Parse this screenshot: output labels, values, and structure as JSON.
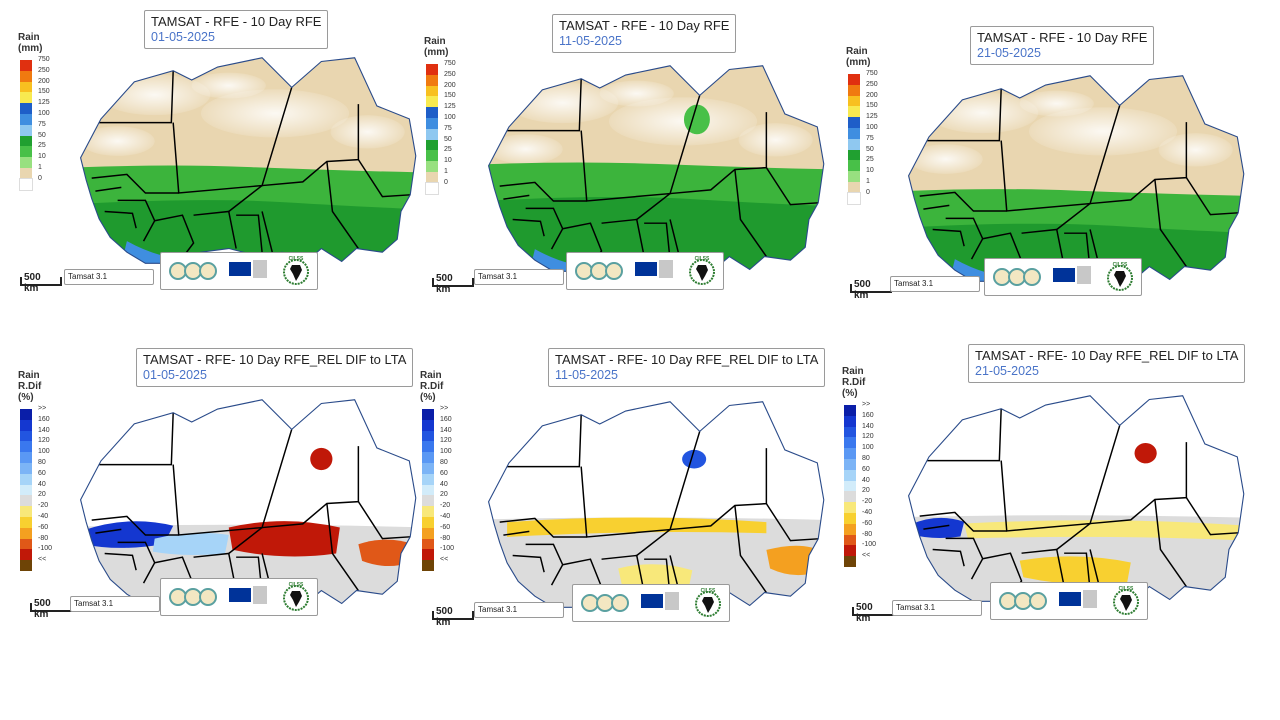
{
  "panels": [
    {
      "title": "TAMSAT - RFE - 10 Day RFE",
      "date": "01-05-2025"
    },
    {
      "title": "TAMSAT - RFE - 10 Day RFE",
      "date": "11-05-2025"
    },
    {
      "title": "TAMSAT - RFE - 10 Day RFE",
      "date": "21-05-2025"
    },
    {
      "title": "TAMSAT - RFE- 10 Day RFE_REL DIF to LTA",
      "date": "01-05-2025"
    },
    {
      "title": "TAMSAT - RFE- 10 Day RFE_REL DIF to LTA",
      "date": "11-05-2025"
    },
    {
      "title": "TAMSAT - RFE- 10 Day RFE_REL DIF to LTA",
      "date": "21-05-2025"
    }
  ],
  "rain_legend": {
    "line1": "Rain",
    "line2": "(mm)",
    "labels": [
      "750",
      "250",
      "200",
      "150",
      "125",
      "100",
      "75",
      "50",
      "25",
      "10",
      "1",
      "0"
    ],
    "colors": [
      "#e03010",
      "#f07a10",
      "#f8c020",
      "#f8ea50",
      "#1e5ec8",
      "#3f8ee0",
      "#8fc8f0",
      "#20a030",
      "#48c048",
      "#98e080",
      "#e9d6b0",
      "#ffffff"
    ]
  },
  "reldif_legend": {
    "line1": "Rain",
    "line2": "R.Dif",
    "line3": "(%)",
    "labels": [
      ">>",
      "160",
      "140",
      "120",
      "100",
      "80",
      "60",
      "40",
      "20",
      "-20",
      "-40",
      "-60",
      "-80",
      "-100",
      "<<"
    ],
    "colors": [
      "#0a1ea8",
      "#1437d0",
      "#2255e0",
      "#3a78ee",
      "#5a98f4",
      "#7cb4f6",
      "#a6d4f8",
      "#d2ecfa",
      "#dcdcdc",
      "#f8e87a",
      "#f8d030",
      "#f4a020",
      "#e05818",
      "#c01808",
      "#6e4406"
    ]
  },
  "scale_label": "500 km",
  "source_label": "Tamsat 3.1",
  "logos": {
    "cilss_text": "CILSS"
  },
  "colors": {
    "sahara": "#e9d6b0",
    "green": "#3cb43c",
    "dark_green": "#1f9a2e",
    "coast_blue": "#3f8ee0",
    "neutral": "#dcdcdc",
    "border": "#000000",
    "coast": "#2a4b8a"
  }
}
